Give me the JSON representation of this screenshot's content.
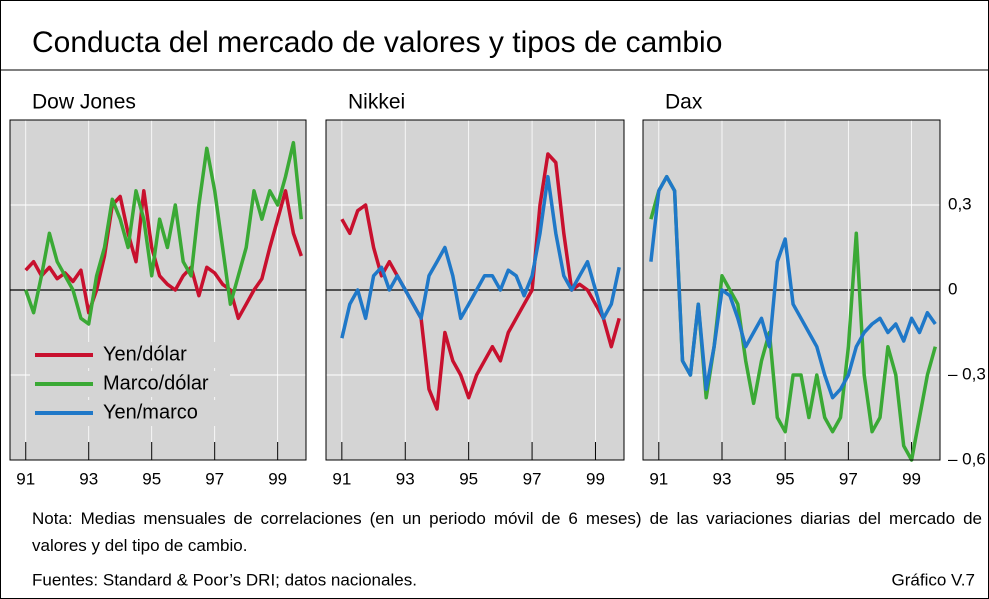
{
  "title": "Conducta del mercado de valores y tipos de cambio",
  "legend": [
    {
      "name": "Yen/dólar",
      "color": "#c8102e"
    },
    {
      "name": "Marco/dólar",
      "color": "#3aa935"
    },
    {
      "name": "Yen/marco",
      "color": "#1f78c8"
    }
  ],
  "note": "Nota: Medias mensuales de correlaciones (en un periodo móvil de 6 meses) de las variaciones diarias del mercado de valores y del tipo de cambio.",
  "sources": "Fuentes: Standard & Poor’s DRI; datos nacionales.",
  "figure_label": "Gráfico V.7",
  "chart_data": [
    {
      "type": "line",
      "title": "Dow Jones",
      "x": [
        1991,
        1991.25,
        1991.5,
        1991.75,
        1992,
        1992.25,
        1992.5,
        1992.75,
        1993,
        1993.25,
        1993.5,
        1993.75,
        1994,
        1994.25,
        1994.5,
        1994.75,
        1995,
        1995.25,
        1995.5,
        1995.75,
        1996,
        1996.25,
        1996.5,
        1996.75,
        1997,
        1997.25,
        1997.5,
        1997.75,
        1998,
        1998.25,
        1998.5,
        1998.75,
        1999,
        1999.25,
        1999.5,
        1999.75
      ],
      "series": [
        {
          "name": "Yen/dólar",
          "color": "#c8102e",
          "values": [
            0.07,
            0.1,
            0.05,
            0.08,
            0.04,
            0.06,
            0.03,
            0.07,
            -0.08,
            0,
            0.12,
            0.3,
            0.33,
            0.2,
            0.1,
            0.35,
            0.15,
            0.05,
            0.02,
            0,
            0.05,
            0.08,
            -0.02,
            0.08,
            0.06,
            0.02,
            0,
            -0.1,
            -0.05,
            0,
            0.04,
            0.15,
            0.25,
            0.35,
            0.2,
            0.12
          ]
        },
        {
          "name": "Marco/dólar",
          "color": "#3aa935",
          "values": [
            0,
            -0.08,
            0.05,
            0.2,
            0.1,
            0.05,
            0,
            -0.1,
            -0.12,
            0.05,
            0.15,
            0.32,
            0.25,
            0.15,
            0.35,
            0.25,
            0.05,
            0.25,
            0.15,
            0.3,
            0.1,
            0.05,
            0.3,
            0.5,
            0.35,
            0.15,
            -0.05,
            0.05,
            0.15,
            0.35,
            0.25,
            0.35,
            0.3,
            0.4,
            0.52,
            0.25
          ]
        }
      ],
      "xlim": [
        1990.5,
        1999.9
      ],
      "ylim": [
        -0.6,
        0.6
      ],
      "xticks": [
        {
          "value": 1991,
          "label": "91"
        },
        {
          "value": 1993,
          "label": "93"
        },
        {
          "value": 1995,
          "label": "95"
        },
        {
          "value": 1997,
          "label": "97"
        },
        {
          "value": 1999,
          "label": "99"
        }
      ],
      "grid": true
    },
    {
      "type": "line",
      "title": "Nikkei",
      "x": [
        1991,
        1991.25,
        1991.5,
        1991.75,
        1992,
        1992.25,
        1992.5,
        1992.75,
        1993,
        1993.25,
        1993.5,
        1993.75,
        1994,
        1994.25,
        1994.5,
        1994.75,
        1995,
        1995.25,
        1995.5,
        1995.75,
        1996,
        1996.25,
        1996.5,
        1996.75,
        1997,
        1997.25,
        1997.5,
        1997.75,
        1998,
        1998.25,
        1998.5,
        1998.75,
        1999,
        1999.25,
        1999.5,
        1999.75
      ],
      "series": [
        {
          "name": "Yen/dólar",
          "color": "#c8102e",
          "values": [
            0.25,
            0.2,
            0.28,
            0.3,
            0.15,
            0.05,
            0.1,
            0.05,
            0,
            -0.05,
            -0.1,
            -0.35,
            -0.42,
            -0.15,
            -0.25,
            -0.3,
            -0.38,
            -0.3,
            -0.25,
            -0.2,
            -0.25,
            -0.15,
            -0.1,
            -0.05,
            0,
            0.3,
            0.48,
            0.45,
            0.2,
            0,
            0.02,
            0,
            -0.05,
            -0.1,
            -0.2,
            -0.1
          ]
        },
        {
          "name": "Yen/marco",
          "color": "#1f78c8",
          "values": [
            -0.17,
            -0.05,
            0,
            -0.1,
            0.05,
            0.08,
            0,
            0.05,
            0,
            -0.05,
            -0.1,
            0.05,
            0.1,
            0.15,
            0.05,
            -0.1,
            -0.05,
            0,
            0.05,
            0.05,
            0,
            0.07,
            0.05,
            -0.02,
            0.05,
            0.2,
            0.4,
            0.2,
            0.05,
            0,
            0.05,
            0.1,
            0,
            -0.1,
            -0.05,
            0.08
          ]
        }
      ],
      "xlim": [
        1990.5,
        1999.9
      ],
      "ylim": [
        -0.6,
        0.6
      ],
      "xticks": [
        {
          "value": 1991,
          "label": "91"
        },
        {
          "value": 1993,
          "label": "93"
        },
        {
          "value": 1995,
          "label": "95"
        },
        {
          "value": 1997,
          "label": "97"
        },
        {
          "value": 1999,
          "label": "99"
        }
      ],
      "grid": true
    },
    {
      "type": "line",
      "title": "Dax",
      "x": [
        1990.75,
        1991,
        1991.25,
        1991.5,
        1991.75,
        1992,
        1992.25,
        1992.5,
        1992.75,
        1993,
        1993.25,
        1993.5,
        1993.75,
        1994,
        1994.25,
        1994.5,
        1994.75,
        1995,
        1995.25,
        1995.5,
        1995.75,
        1996,
        1996.25,
        1996.5,
        1996.75,
        1997,
        1997.25,
        1997.5,
        1997.75,
        1998,
        1998.25,
        1998.5,
        1998.75,
        1999,
        1999.25,
        1999.5,
        1999.75
      ],
      "series": [
        {
          "name": "Marco/dólar",
          "color": "#3aa935",
          "values": [
            0.25,
            0.35,
            0.4,
            0.35,
            -0.25,
            -0.3,
            -0.05,
            -0.38,
            -0.2,
            0.05,
            0,
            -0.05,
            -0.25,
            -0.4,
            -0.25,
            -0.15,
            -0.45,
            -0.5,
            -0.3,
            -0.3,
            -0.45,
            -0.3,
            -0.45,
            -0.5,
            -0.45,
            -0.2,
            0.2,
            -0.3,
            -0.5,
            -0.45,
            -0.2,
            -0.3,
            -0.55,
            -0.6,
            -0.45,
            -0.3,
            -0.2
          ]
        },
        {
          "name": "Yen/marco",
          "color": "#1f78c8",
          "values": [
            0.1,
            0.35,
            0.4,
            0.35,
            -0.25,
            -0.3,
            -0.05,
            -0.35,
            -0.2,
            0,
            -0.02,
            -0.1,
            -0.2,
            -0.15,
            -0.1,
            -0.2,
            0.1,
            0.18,
            -0.05,
            -0.1,
            -0.15,
            -0.2,
            -0.3,
            -0.38,
            -0.35,
            -0.3,
            -0.2,
            -0.15,
            -0.12,
            -0.1,
            -0.15,
            -0.12,
            -0.18,
            -0.1,
            -0.15,
            -0.08,
            -0.12
          ]
        }
      ],
      "xlim": [
        1990.5,
        1999.9
      ],
      "ylim": [
        -0.6,
        0.6
      ],
      "xticks": [
        {
          "value": 1991,
          "label": "91"
        },
        {
          "value": 1993,
          "label": "93"
        },
        {
          "value": 1995,
          "label": "95"
        },
        {
          "value": 1997,
          "label": "97"
        },
        {
          "value": 1999,
          "label": "99"
        }
      ],
      "yticks": [
        {
          "value": 0.3,
          "label": "0,3"
        },
        0,
        {
          "value": -0.3,
          "label": "– 0,3"
        },
        {
          "value": -0.6,
          "label": "– 0,6"
        }
      ],
      "grid": true
    }
  ]
}
